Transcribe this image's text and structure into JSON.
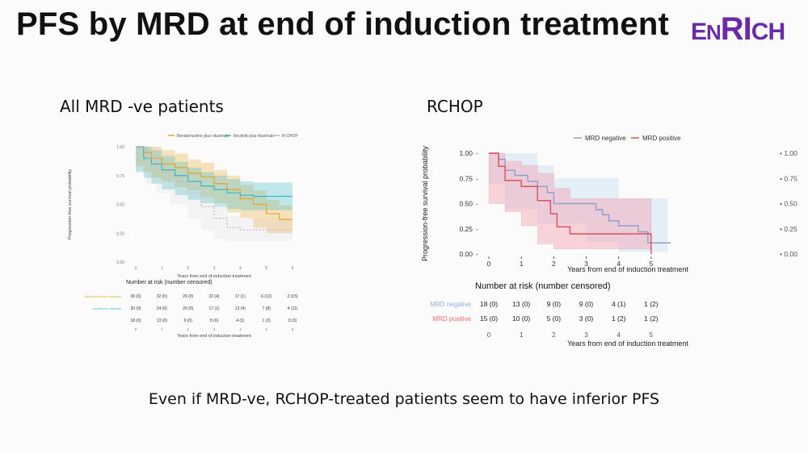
{
  "slide": {
    "title": "PFS by MRD at end of induction treatment",
    "logo_text": "ENRICH",
    "left_subtitle": "All MRD -ve patients",
    "right_subtitle": "RCHOP",
    "conclusion": "Even if MRD-ve, RCHOP-treated patients seem to have inferior PFS"
  },
  "chart_data": [
    {
      "type": "line",
      "title": "All MRD -ve patients",
      "ylabel": "Progression-free survival probability",
      "xlabel": "Years from end of induction treatment",
      "xlim": [
        0,
        6
      ],
      "ylim": [
        0,
        1
      ],
      "x_ticks": [
        0,
        1,
        2,
        3,
        4,
        5,
        6
      ],
      "y_ticks": [
        "0.00",
        "0.25",
        "0.50",
        "0.75",
        "1.00"
      ],
      "legend_position": "top",
      "series": [
        {
          "name": "Bendamustine plus rituximab",
          "color": "#e8a52a",
          "steps": [
            [
              0,
              1.0
            ],
            [
              0.3,
              0.95
            ],
            [
              0.6,
              0.9
            ],
            [
              1.0,
              0.85
            ],
            [
              1.5,
              0.82
            ],
            [
              2.0,
              0.77
            ],
            [
              2.5,
              0.74
            ],
            [
              3.0,
              0.68
            ],
            [
              3.5,
              0.63
            ],
            [
              4.0,
              0.55
            ],
            [
              4.5,
              0.5
            ],
            [
              5.0,
              0.42
            ],
            [
              5.5,
              0.37
            ],
            [
              6.0,
              0.37
            ]
          ],
          "band": [
            0.12,
            0.12
          ]
        },
        {
          "name": "Ibrutinib plus rituximab",
          "color": "#3cb6c4",
          "steps": [
            [
              0,
              1.0
            ],
            [
              0.3,
              0.9
            ],
            [
              0.6,
              0.85
            ],
            [
              1.0,
              0.8
            ],
            [
              1.5,
              0.75
            ],
            [
              2.0,
              0.7
            ],
            [
              2.5,
              0.66
            ],
            [
              3.0,
              0.63
            ],
            [
              3.5,
              0.6
            ],
            [
              4.0,
              0.58
            ],
            [
              4.5,
              0.57
            ],
            [
              5.0,
              0.57
            ],
            [
              6.0,
              0.57
            ]
          ],
          "band": [
            0.12,
            0.12
          ]
        },
        {
          "name": "R-CHOP",
          "color": "#bbbbbb",
          "steps": [
            [
              0,
              1.0
            ],
            [
              0.4,
              0.9
            ],
            [
              0.8,
              0.78
            ],
            [
              1.3,
              0.7
            ],
            [
              2.0,
              0.6
            ],
            [
              2.5,
              0.48
            ],
            [
              3.0,
              0.38
            ],
            [
              3.5,
              0.3
            ],
            [
              4.0,
              0.28
            ],
            [
              6.0,
              0.28
            ]
          ],
          "band": [
            0.1,
            0.1
          ]
        }
      ],
      "risk_table": {
        "title": "Number at risk (number censored)",
        "xlabel": "Years from end of induction treatment",
        "times": [
          "0",
          "1",
          "2",
          "3",
          "4",
          "5",
          "6"
        ],
        "rows": [
          {
            "label": "Bendamustine plus rituximab",
            "color": "#e8a52a",
            "values": [
              "36 (0)",
              "32 (0)",
              "29 (0)",
              "22 (4)",
              "17 (1)",
              "6 (12)",
              "2 (15)"
            ]
          },
          {
            "label": "Ibrutinib plus rituximab",
            "color": "#3cb6c4",
            "values": [
              "30 (0)",
              "24 (0)",
              "20 (0)",
              "17 (1)",
              "13 (4)",
              "7 (8)",
              "4 (11)"
            ]
          },
          {
            "label": "",
            "color": "#444444",
            "values": [
              "18 (0)",
              "13 (0)",
              "9 (0)",
              "9 (0)",
              "4 (1)",
              "1 (2)",
              "0 (3)"
            ]
          }
        ]
      }
    },
    {
      "type": "line",
      "title": "RCHOP",
      "ylabel": "Progression-free survival probability",
      "xlabel": "Years from end of induction treatment",
      "xlim": [
        0,
        5.6
      ],
      "ylim": [
        0,
        1
      ],
      "x_ticks": [
        "0",
        "1",
        "2",
        "3",
        "4",
        "5"
      ],
      "y_ticks": [
        "0.00",
        "0.25",
        "0.50",
        "0.75",
        "1.00"
      ],
      "legend_position": "top",
      "series": [
        {
          "name": "MRD negative",
          "color": "#8fa0d0",
          "steps": [
            [
              0,
              1.0
            ],
            [
              0.3,
              0.94
            ],
            [
              0.5,
              0.83
            ],
            [
              0.8,
              0.78
            ],
            [
              1.2,
              0.72
            ],
            [
              1.5,
              0.67
            ],
            [
              1.8,
              0.61
            ],
            [
              2.0,
              0.5
            ],
            [
              3.0,
              0.5
            ],
            [
              3.3,
              0.44
            ],
            [
              3.5,
              0.39
            ],
            [
              3.7,
              0.33
            ],
            [
              4.0,
              0.28
            ],
            [
              4.6,
              0.22
            ],
            [
              4.9,
              0.11
            ],
            [
              5.6,
              0.11
            ]
          ],
          "band_upper": [
            [
              0,
              1.0
            ],
            [
              0.5,
              1.0
            ],
            [
              1.5,
              0.88
            ],
            [
              2.0,
              0.75
            ],
            [
              3.0,
              0.75
            ],
            [
              4.0,
              0.55
            ],
            [
              5.0,
              0.55
            ],
            [
              5.5,
              0.55
            ]
          ],
          "band_lower": [
            [
              0,
              0.9
            ],
            [
              0.5,
              0.7
            ],
            [
              1.5,
              0.45
            ],
            [
              2.0,
              0.3
            ],
            [
              3.0,
              0.3
            ],
            [
              4.0,
              0.12
            ],
            [
              5.0,
              0.02
            ],
            [
              5.5,
              0.02
            ]
          ]
        },
        {
          "name": "MRD positive",
          "color": "#e0505a",
          "steps": [
            [
              0,
              1.0
            ],
            [
              0.3,
              0.87
            ],
            [
              0.5,
              0.73
            ],
            [
              1.0,
              0.67
            ],
            [
              1.5,
              0.53
            ],
            [
              1.9,
              0.4
            ],
            [
              2.1,
              0.27
            ],
            [
              2.5,
              0.2
            ],
            [
              4.0,
              0.2
            ],
            [
              4.8,
              0.2
            ],
            [
              5.0,
              0.0
            ]
          ],
          "band_upper": [
            [
              0,
              1.0
            ],
            [
              0.5,
              0.92
            ],
            [
              1.0,
              0.88
            ],
            [
              1.5,
              0.8
            ],
            [
              2.0,
              0.65
            ],
            [
              2.5,
              0.55
            ],
            [
              5.0,
              0.55
            ]
          ],
          "band_lower": [
            [
              0,
              0.75
            ],
            [
              0.5,
              0.5
            ],
            [
              1.0,
              0.42
            ],
            [
              1.5,
              0.28
            ],
            [
              2.0,
              0.1
            ],
            [
              2.5,
              0.05
            ],
            [
              5.0,
              0.05
            ]
          ]
        }
      ],
      "risk_table": {
        "title": "Number at risk (number censored)",
        "xlabel": "Years from end of induction treatment",
        "times": [
          "0",
          "1",
          "2",
          "3",
          "4",
          "5"
        ],
        "rows": [
          {
            "label": "MRD negative",
            "color": "#8fb0e0",
            "values": [
              "18 (0)",
              "13 (0)",
              "9 (0)",
              "9 (0)",
              "4 (1)",
              "1 (2)"
            ]
          },
          {
            "label": "MRD positive",
            "color": "#e06a6a",
            "values": [
              "15 (0)",
              "10 (0)",
              "5 (0)",
              "3 (0)",
              "1 (2)",
              "1 (2)"
            ]
          }
        ]
      }
    }
  ]
}
